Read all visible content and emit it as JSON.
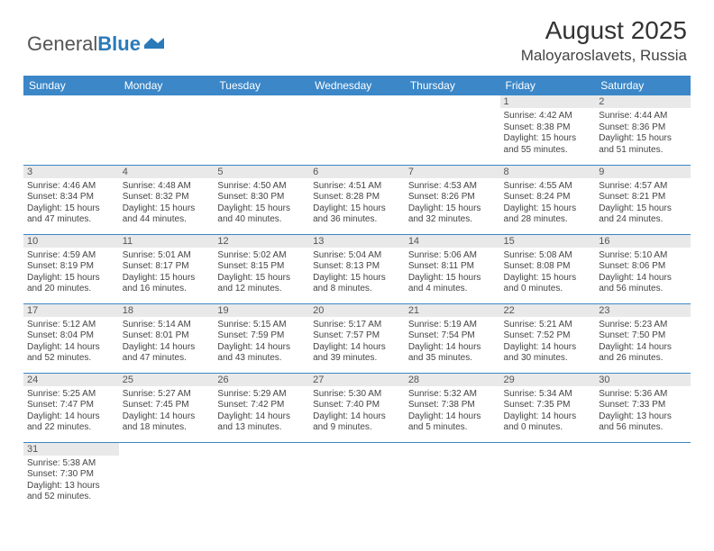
{
  "logo": {
    "text1": "General",
    "text2": "Blue"
  },
  "title": "August 2025",
  "location": "Maloyaroslavets, Russia",
  "colors": {
    "header_bg": "#3b87c8",
    "header_text": "#ffffff",
    "daynum_bg": "#e9e9e9",
    "border": "#3b87c8",
    "logo_blue": "#2a7ab9"
  },
  "weekdays": [
    "Sunday",
    "Monday",
    "Tuesday",
    "Wednesday",
    "Thursday",
    "Friday",
    "Saturday"
  ],
  "weeks": [
    [
      {
        "empty": true
      },
      {
        "empty": true
      },
      {
        "empty": true
      },
      {
        "empty": true
      },
      {
        "empty": true
      },
      {
        "day": "1",
        "sunrise": "Sunrise: 4:42 AM",
        "sunset": "Sunset: 8:38 PM",
        "daylight": "Daylight: 15 hours and 55 minutes."
      },
      {
        "day": "2",
        "sunrise": "Sunrise: 4:44 AM",
        "sunset": "Sunset: 8:36 PM",
        "daylight": "Daylight: 15 hours and 51 minutes."
      }
    ],
    [
      {
        "day": "3",
        "sunrise": "Sunrise: 4:46 AM",
        "sunset": "Sunset: 8:34 PM",
        "daylight": "Daylight: 15 hours and 47 minutes."
      },
      {
        "day": "4",
        "sunrise": "Sunrise: 4:48 AM",
        "sunset": "Sunset: 8:32 PM",
        "daylight": "Daylight: 15 hours and 44 minutes."
      },
      {
        "day": "5",
        "sunrise": "Sunrise: 4:50 AM",
        "sunset": "Sunset: 8:30 PM",
        "daylight": "Daylight: 15 hours and 40 minutes."
      },
      {
        "day": "6",
        "sunrise": "Sunrise: 4:51 AM",
        "sunset": "Sunset: 8:28 PM",
        "daylight": "Daylight: 15 hours and 36 minutes."
      },
      {
        "day": "7",
        "sunrise": "Sunrise: 4:53 AM",
        "sunset": "Sunset: 8:26 PM",
        "daylight": "Daylight: 15 hours and 32 minutes."
      },
      {
        "day": "8",
        "sunrise": "Sunrise: 4:55 AM",
        "sunset": "Sunset: 8:24 PM",
        "daylight": "Daylight: 15 hours and 28 minutes."
      },
      {
        "day": "9",
        "sunrise": "Sunrise: 4:57 AM",
        "sunset": "Sunset: 8:21 PM",
        "daylight": "Daylight: 15 hours and 24 minutes."
      }
    ],
    [
      {
        "day": "10",
        "sunrise": "Sunrise: 4:59 AM",
        "sunset": "Sunset: 8:19 PM",
        "daylight": "Daylight: 15 hours and 20 minutes."
      },
      {
        "day": "11",
        "sunrise": "Sunrise: 5:01 AM",
        "sunset": "Sunset: 8:17 PM",
        "daylight": "Daylight: 15 hours and 16 minutes."
      },
      {
        "day": "12",
        "sunrise": "Sunrise: 5:02 AM",
        "sunset": "Sunset: 8:15 PM",
        "daylight": "Daylight: 15 hours and 12 minutes."
      },
      {
        "day": "13",
        "sunrise": "Sunrise: 5:04 AM",
        "sunset": "Sunset: 8:13 PM",
        "daylight": "Daylight: 15 hours and 8 minutes."
      },
      {
        "day": "14",
        "sunrise": "Sunrise: 5:06 AM",
        "sunset": "Sunset: 8:11 PM",
        "daylight": "Daylight: 15 hours and 4 minutes."
      },
      {
        "day": "15",
        "sunrise": "Sunrise: 5:08 AM",
        "sunset": "Sunset: 8:08 PM",
        "daylight": "Daylight: 15 hours and 0 minutes."
      },
      {
        "day": "16",
        "sunrise": "Sunrise: 5:10 AM",
        "sunset": "Sunset: 8:06 PM",
        "daylight": "Daylight: 14 hours and 56 minutes."
      }
    ],
    [
      {
        "day": "17",
        "sunrise": "Sunrise: 5:12 AM",
        "sunset": "Sunset: 8:04 PM",
        "daylight": "Daylight: 14 hours and 52 minutes."
      },
      {
        "day": "18",
        "sunrise": "Sunrise: 5:14 AM",
        "sunset": "Sunset: 8:01 PM",
        "daylight": "Daylight: 14 hours and 47 minutes."
      },
      {
        "day": "19",
        "sunrise": "Sunrise: 5:15 AM",
        "sunset": "Sunset: 7:59 PM",
        "daylight": "Daylight: 14 hours and 43 minutes."
      },
      {
        "day": "20",
        "sunrise": "Sunrise: 5:17 AM",
        "sunset": "Sunset: 7:57 PM",
        "daylight": "Daylight: 14 hours and 39 minutes."
      },
      {
        "day": "21",
        "sunrise": "Sunrise: 5:19 AM",
        "sunset": "Sunset: 7:54 PM",
        "daylight": "Daylight: 14 hours and 35 minutes."
      },
      {
        "day": "22",
        "sunrise": "Sunrise: 5:21 AM",
        "sunset": "Sunset: 7:52 PM",
        "daylight": "Daylight: 14 hours and 30 minutes."
      },
      {
        "day": "23",
        "sunrise": "Sunrise: 5:23 AM",
        "sunset": "Sunset: 7:50 PM",
        "daylight": "Daylight: 14 hours and 26 minutes."
      }
    ],
    [
      {
        "day": "24",
        "sunrise": "Sunrise: 5:25 AM",
        "sunset": "Sunset: 7:47 PM",
        "daylight": "Daylight: 14 hours and 22 minutes."
      },
      {
        "day": "25",
        "sunrise": "Sunrise: 5:27 AM",
        "sunset": "Sunset: 7:45 PM",
        "daylight": "Daylight: 14 hours and 18 minutes."
      },
      {
        "day": "26",
        "sunrise": "Sunrise: 5:29 AM",
        "sunset": "Sunset: 7:42 PM",
        "daylight": "Daylight: 14 hours and 13 minutes."
      },
      {
        "day": "27",
        "sunrise": "Sunrise: 5:30 AM",
        "sunset": "Sunset: 7:40 PM",
        "daylight": "Daylight: 14 hours and 9 minutes."
      },
      {
        "day": "28",
        "sunrise": "Sunrise: 5:32 AM",
        "sunset": "Sunset: 7:38 PM",
        "daylight": "Daylight: 14 hours and 5 minutes."
      },
      {
        "day": "29",
        "sunrise": "Sunrise: 5:34 AM",
        "sunset": "Sunset: 7:35 PM",
        "daylight": "Daylight: 14 hours and 0 minutes."
      },
      {
        "day": "30",
        "sunrise": "Sunrise: 5:36 AM",
        "sunset": "Sunset: 7:33 PM",
        "daylight": "Daylight: 13 hours and 56 minutes."
      }
    ],
    [
      {
        "day": "31",
        "sunrise": "Sunrise: 5:38 AM",
        "sunset": "Sunset: 7:30 PM",
        "daylight": "Daylight: 13 hours and 52 minutes."
      },
      {
        "empty": true
      },
      {
        "empty": true
      },
      {
        "empty": true
      },
      {
        "empty": true
      },
      {
        "empty": true
      },
      {
        "empty": true
      }
    ]
  ]
}
